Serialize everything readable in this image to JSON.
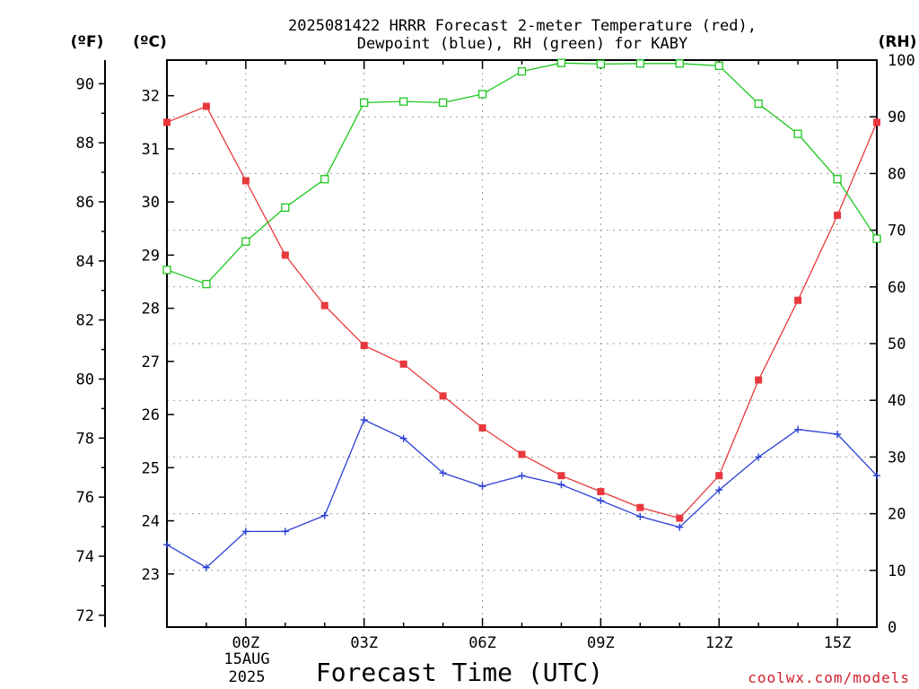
{
  "header": {
    "title_line1": "2025081422 HRRR Forecast 2-meter Temperature (red),",
    "title_line2": "Dewpoint (blue), RH (green) for KABY",
    "unit_f": "(ºF)",
    "unit_c": "(ºC)",
    "unit_rh": "(RH)"
  },
  "footer": {
    "xlabel": "Forecast Time (UTC)",
    "credit": "coolwx.com/models",
    "date_day": "15AUG",
    "date_year": "2025"
  },
  "chart_data": {
    "type": "line",
    "title": "2025081422 HRRR Forecast 2-meter Temperature (red), Dewpoint (blue), RH (green) for KABY",
    "xlabel": "Forecast Time (UTC)",
    "x": [
      "22Z",
      "23Z",
      "00Z",
      "01Z",
      "02Z",
      "03Z",
      "04Z",
      "05Z",
      "06Z",
      "07Z",
      "08Z",
      "09Z",
      "10Z",
      "11Z",
      "12Z",
      "13Z",
      "14Z",
      "15Z",
      "16Z"
    ],
    "x_tick_labels": [
      "00Z",
      "03Z",
      "06Z",
      "09Z",
      "12Z",
      "15Z"
    ],
    "x_range": [
      22,
      40
    ],
    "axes": {
      "fahrenheit": {
        "range": [
          71.6,
          90.8
        ],
        "ticks": [
          72,
          74,
          76,
          78,
          80,
          82,
          84,
          86,
          88,
          90
        ]
      },
      "celsius": {
        "range": [
          22.0,
          32.67
        ],
        "ticks": [
          23,
          24,
          25,
          26,
          27,
          28,
          29,
          30,
          31,
          32
        ]
      },
      "rh": {
        "range": [
          0,
          100
        ],
        "ticks": [
          0,
          10,
          20,
          30,
          40,
          50,
          60,
          70,
          80,
          90,
          100
        ]
      }
    },
    "grid": true,
    "series": [
      {
        "name": "Temperature",
        "color": "#e8383d",
        "axis": "celsius",
        "marker": "filled-square",
        "values": [
          31.5,
          31.8,
          30.4,
          29.0,
          28.05,
          27.3,
          26.95,
          26.35,
          25.75,
          25.25,
          24.85,
          24.55,
          24.25,
          24.05,
          24.85,
          26.65,
          28.15,
          29.75,
          31.5
        ]
      },
      {
        "name": "Dewpoint",
        "color": "#2a3fd6",
        "axis": "celsius",
        "marker": "plus",
        "values": [
          23.55,
          23.12,
          23.8,
          23.8,
          24.1,
          25.9,
          25.55,
          24.9,
          24.65,
          24.85,
          24.68,
          24.38,
          24.08,
          23.88,
          24.58,
          25.2,
          25.72,
          25.63,
          24.85
        ]
      },
      {
        "name": "RH",
        "color": "#1ec81e",
        "axis": "rh",
        "marker": "open-square",
        "values": [
          63,
          60.5,
          68,
          74,
          79,
          92.5,
          92.7,
          92.5,
          94,
          98,
          99.5,
          99.3,
          99.4,
          99.4,
          99,
          92.3,
          87,
          79,
          68.5
        ]
      }
    ]
  }
}
